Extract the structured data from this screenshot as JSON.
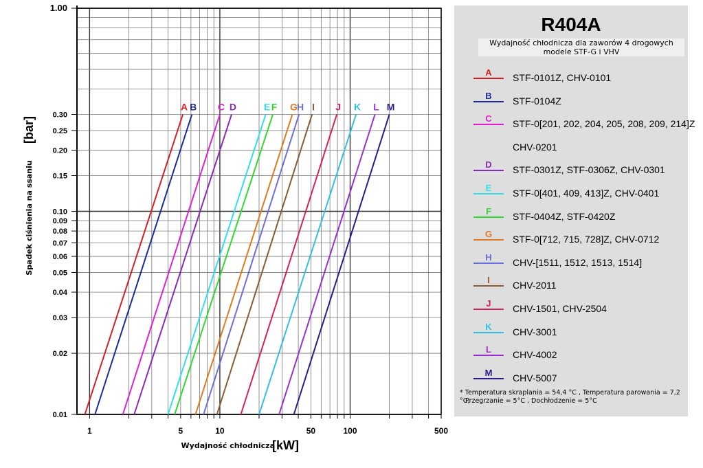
{
  "chart_data": {
    "type": "line",
    "xscale": "log",
    "yscale": "log",
    "xlim": [
      0.8,
      500
    ],
    "ylim": [
      0.01,
      1.0
    ],
    "grid": true,
    "xlabel_small": "Wydajność chłodnicza",
    "xlabel_big": "[kW]",
    "ylabel_small": "Spadek ciśnienia na ssaniu",
    "ylabel_big": "[bar]",
    "xticks": [
      1,
      5,
      10,
      50,
      100,
      500
    ],
    "yticks": [
      "1.00",
      "0.30",
      "0.25",
      "0.20",
      "0.15",
      "0.10",
      "0.09",
      "0.08",
      "0.07",
      "0.06",
      "0.05",
      "0.04",
      "0.03",
      "0.02",
      "0.01"
    ],
    "series": [
      {
        "name": "A",
        "color": "#d42020",
        "x": [
          0.92,
          5.2
        ],
        "y": [
          0.01,
          0.3
        ]
      },
      {
        "name": "B",
        "color": "#1a2a9a",
        "x": [
          1.1,
          6.1
        ],
        "y": [
          0.01,
          0.3
        ]
      },
      {
        "name": "C",
        "color": "#e020d0",
        "x": [
          1.8,
          10.0
        ],
        "y": [
          0.01,
          0.3
        ]
      },
      {
        "name": "D",
        "color": "#8a2ab8",
        "x": [
          2.2,
          12.3
        ],
        "y": [
          0.01,
          0.3
        ]
      },
      {
        "name": "E",
        "color": "#30e0e8",
        "x": [
          4.0,
          22.5
        ],
        "y": [
          0.01,
          0.3
        ]
      },
      {
        "name": "F",
        "color": "#30d830",
        "x": [
          4.5,
          25.5
        ],
        "y": [
          0.01,
          0.3
        ]
      },
      {
        "name": "G",
        "color": "#e07820",
        "x": [
          6.5,
          36.0
        ],
        "y": [
          0.01,
          0.3
        ]
      },
      {
        "name": "H",
        "color": "#6a70d8",
        "x": [
          7.5,
          40.5
        ],
        "y": [
          0.01,
          0.3
        ]
      },
      {
        "name": "I",
        "color": "#8a5a30",
        "x": [
          9.5,
          51.0
        ],
        "y": [
          0.01,
          0.3
        ]
      },
      {
        "name": "J",
        "color": "#d8205a",
        "x": [
          14.5,
          79.0
        ],
        "y": [
          0.01,
          0.3
        ]
      },
      {
        "name": "K",
        "color": "#30c0e0",
        "x": [
          20.0,
          111.0
        ],
        "y": [
          0.01,
          0.3
        ]
      },
      {
        "name": "L",
        "color": "#9a30d0",
        "x": [
          28.5,
          155.0
        ],
        "y": [
          0.01,
          0.3
        ]
      },
      {
        "name": "M",
        "color": "#2a1a8a",
        "x": [
          37.0,
          200.0
        ],
        "y": [
          0.01,
          0.3
        ]
      }
    ]
  },
  "legend": {
    "title": "R404A",
    "subtitle_line1": "Wydajność chłodnicza dla zaworów 4 drogowych",
    "subtitle_line2": "modele STF-G i VHV",
    "items": [
      {
        "letter": "A",
        "color": "#d42020",
        "text": "STF-0101Z, CHV-0101"
      },
      {
        "letter": "B",
        "color": "#1a2a9a",
        "text": "STF-0104Z"
      },
      {
        "letter": "C",
        "color": "#e020d0",
        "text": "STF-0[201, 202, 204, 205, 208, 209, 214]Z",
        "cont": "CHV-0201"
      },
      {
        "letter": "D",
        "color": "#8a2ab8",
        "text": "STF-0301Z, STF-0306Z, CHV-0301"
      },
      {
        "letter": "E",
        "color": "#30e0e8",
        "text": "STF-0[401, 409, 413]Z, CHV-0401"
      },
      {
        "letter": "F",
        "color": "#30d830",
        "text": "STF-0404Z, STF-0420Z"
      },
      {
        "letter": "G",
        "color": "#e07820",
        "text": "STF-0[712, 715, 728]Z, CHV-0712"
      },
      {
        "letter": "H",
        "color": "#6a70d8",
        "text": "CHV-[1511, 1512, 1513, 1514]"
      },
      {
        "letter": "I",
        "color": "#8a5a30",
        "text": "CHV-2011"
      },
      {
        "letter": "J",
        "color": "#d8205a",
        "text": "CHV-1501, CHV-2504"
      },
      {
        "letter": "K",
        "color": "#30c0e0",
        "text": "CHV-3001"
      },
      {
        "letter": "L",
        "color": "#9a30d0",
        "text": "CHV-4002"
      },
      {
        "letter": "M",
        "color": "#2a1a8a",
        "text": "CHV-5007"
      }
    ],
    "note_line1": "* Temperatura skraplania = 54,4 °C , Temperatura parowania = 7,2 °C,",
    "note_line2": "Przegrzanie = 5°C , Dochłodzenie = 5°C"
  }
}
